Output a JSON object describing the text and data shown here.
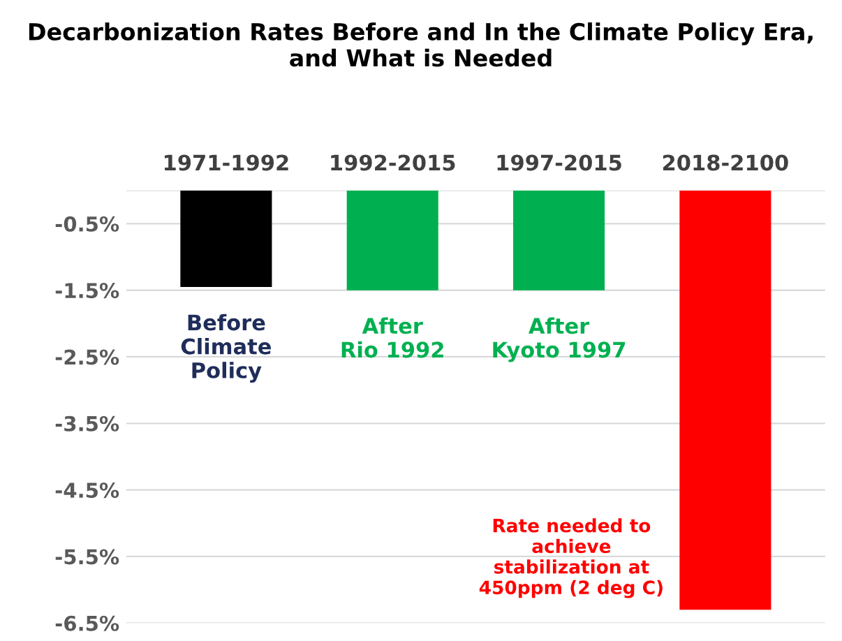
{
  "chart_data": {
    "type": "bar",
    "title": "Decarbonization Rates Before and In the Climate Policy Era, and What is Needed",
    "categories": [
      "1971-1992",
      "1992-2015",
      "1997-2015",
      "2018-2100"
    ],
    "values": [
      -1.45,
      -1.5,
      -1.5,
      -6.3
    ],
    "colors": [
      "#000000",
      "#00b050",
      "#00b050",
      "#ff0000"
    ],
    "ylim": [
      -6.5,
      0
    ],
    "yticks": [
      {
        "value": -0.5,
        "label": "-0.5%"
      },
      {
        "value": -1.5,
        "label": "-1.5%"
      },
      {
        "value": -2.5,
        "label": "-2.5%"
      },
      {
        "value": -3.5,
        "label": "-3.5%"
      },
      {
        "value": -4.5,
        "label": "-4.5%"
      },
      {
        "value": -5.5,
        "label": "-5.5%"
      },
      {
        "value": -6.5,
        "label": "-6.5%"
      }
    ],
    "grid": "y",
    "annotations": [
      "Before\nClimate\nPolicy",
      "After\nRio 1992",
      "After\nKyoto 1997",
      "Rate needed to\nachieve\nstabilization at\n450ppm (2 deg C)"
    ]
  }
}
